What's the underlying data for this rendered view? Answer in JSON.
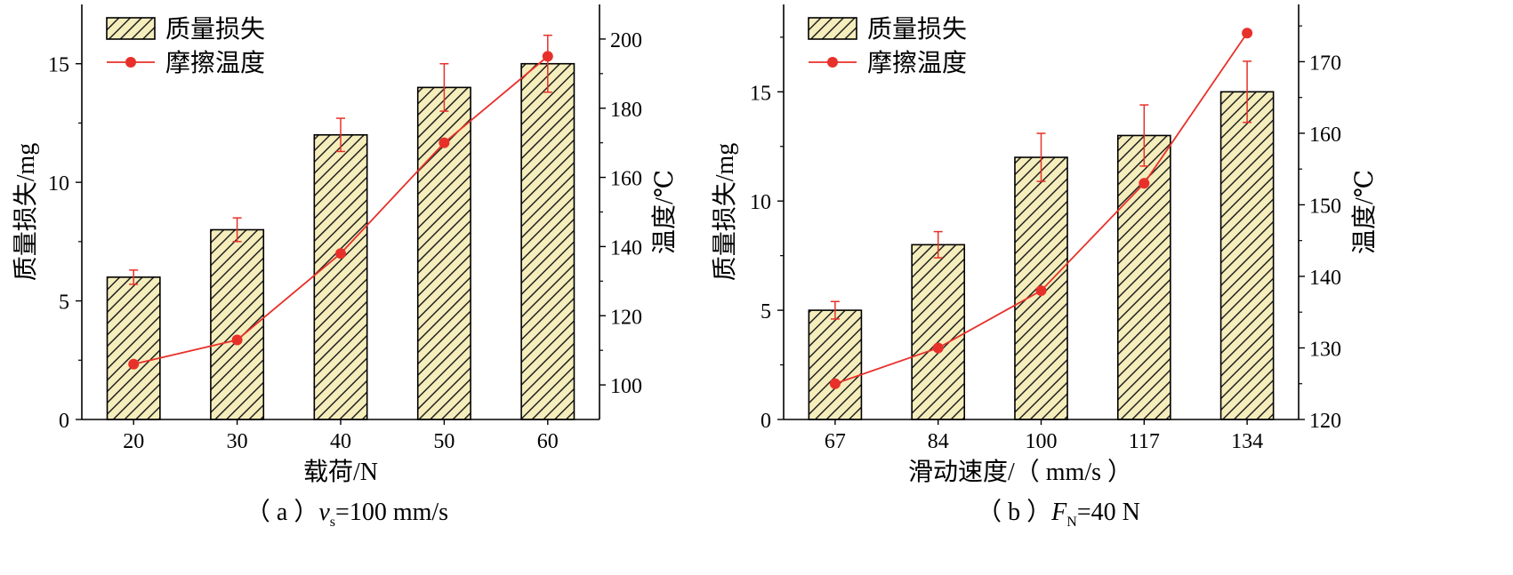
{
  "chart_data": [
    {
      "type": "bar",
      "categories": [
        "20",
        "30",
        "40",
        "50",
        "60"
      ],
      "xlabel": "载荷/N",
      "ylabel": "质量损失/mg",
      "y2label": "温度/℃",
      "ylim": [
        0,
        17.5
      ],
      "y2lim": [
        90,
        210
      ],
      "yticks": [
        0,
        5,
        10,
        15
      ],
      "y2ticks": [
        100,
        120,
        140,
        160,
        180,
        200
      ],
      "caption": {
        "prefix": "（ a ）",
        "var": "v",
        "sub": "s",
        "rest": "=100 mm/s"
      },
      "series": [
        {
          "name": "质量损失",
          "kind": "bar",
          "axis": "left",
          "values": [
            6,
            8,
            12,
            14,
            15
          ],
          "errors": [
            0.3,
            0.5,
            0.7,
            1.0,
            1.2
          ]
        },
        {
          "name": "摩擦温度",
          "kind": "line",
          "axis": "right",
          "values": [
            106,
            113,
            138,
            170,
            195
          ],
          "errors": [
            null,
            null,
            null,
            null,
            null
          ]
        }
      ],
      "legend": "top-left",
      "colors": {
        "bar_fill": "#f5eebc",
        "line": "#e8302a",
        "error": "#e8302a"
      }
    },
    {
      "type": "bar",
      "categories": [
        "67",
        "84",
        "100",
        "117",
        "134"
      ],
      "xlabel": "滑动速度/（ mm/s ）",
      "ylabel": "质量损失/mg",
      "y2label": "温度/℃",
      "ylim": [
        0,
        19
      ],
      "y2lim": [
        120,
        178
      ],
      "yticks": [
        0,
        5,
        10,
        15
      ],
      "y2ticks": [
        120,
        130,
        140,
        150,
        160,
        170
      ],
      "caption": {
        "prefix": "（ b ）",
        "var": "F",
        "sub": "N",
        "rest": "=40 N"
      },
      "series": [
        {
          "name": "质量损失",
          "kind": "bar",
          "axis": "left",
          "values": [
            5,
            8,
            12,
            13,
            15
          ],
          "errors": [
            0.4,
            0.6,
            1.1,
            1.4,
            1.4
          ]
        },
        {
          "name": "摩擦温度",
          "kind": "line",
          "axis": "right",
          "values": [
            125,
            130,
            138,
            153,
            174
          ],
          "errors": [
            null,
            null,
            null,
            null,
            null
          ]
        }
      ],
      "legend": "top-left",
      "colors": {
        "bar_fill": "#f5eebc",
        "line": "#e8302a",
        "error": "#e8302a"
      }
    }
  ]
}
